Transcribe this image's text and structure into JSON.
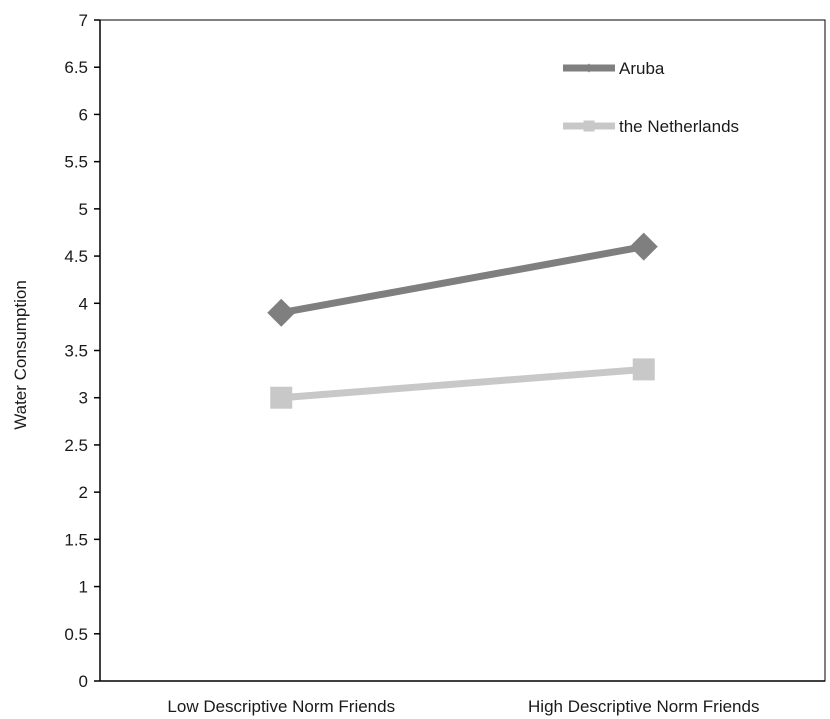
{
  "chart_data": {
    "type": "line",
    "title": "",
    "xlabel": "",
    "ylabel": "Water Consumption",
    "categories": [
      "Low Descriptive Norm Friends",
      "High Descriptive Norm Friends"
    ],
    "ylim": [
      0,
      7
    ],
    "yticks": [
      "0",
      "0.5",
      "1",
      "1.5",
      "2",
      "2.5",
      "3",
      "3.5",
      "4",
      "4.5",
      "5",
      "5.5",
      "6",
      "6.5",
      "7"
    ],
    "series": [
      {
        "name": "Aruba",
        "values": [
          3.9,
          4.6
        ],
        "color": "#7f7f7f",
        "marker": "diamond"
      },
      {
        "name": "the Netherlands",
        "values": [
          3.0,
          3.3
        ],
        "color": "#c8c8c8",
        "marker": "square"
      }
    ],
    "grid": false,
    "legend_position": "top-right"
  }
}
